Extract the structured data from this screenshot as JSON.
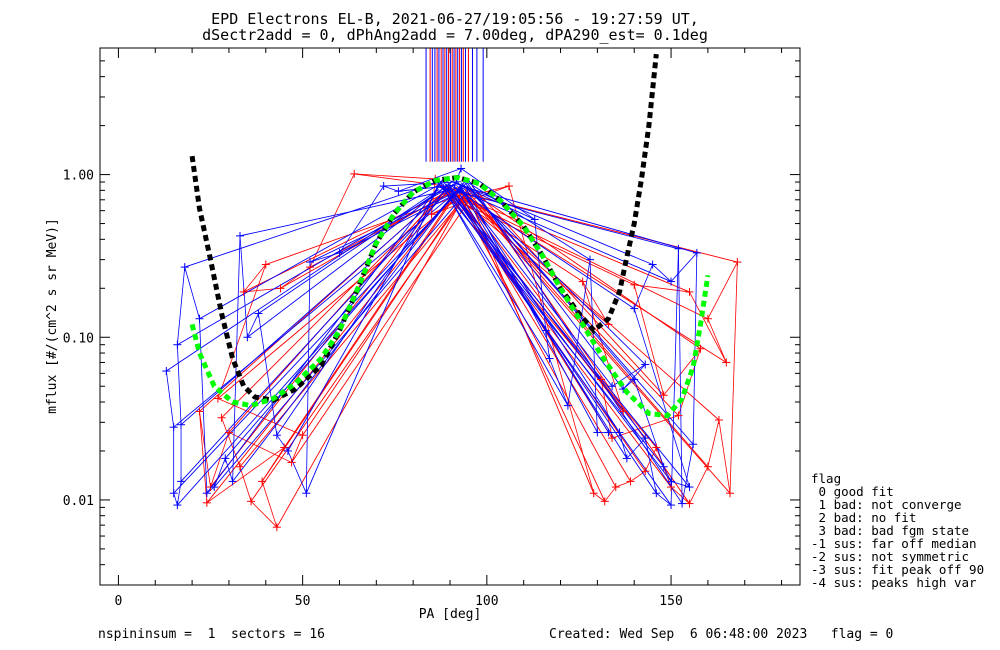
{
  "chart_data": {
    "type": "line",
    "title": "EPD Electrons EL-B, 2021-06-27/19:05:56 - 19:27:59 UT,",
    "subtitle": "dSectr2add = 0, dPhAng2add = 7.00deg, dPA290_est=   0.1deg",
    "xlabel": "PA [deg]",
    "ylabel": "mflux [#/(cm^2 s sr MeV)]",
    "xlim": [
      -5,
      185
    ],
    "ylim": [
      0.003,
      6.0
    ],
    "yscale": "log",
    "x_ticks": [
      0,
      50,
      100,
      150
    ],
    "y_ticks": [
      0.01,
      0.1,
      1.0
    ],
    "y_tick_labels": [
      "0.01",
      "0.10",
      "1.00"
    ],
    "colors": {
      "red": "#ff0000",
      "blue": "#0000ff",
      "black": "#000000",
      "green": "#00ff00"
    },
    "vertical_markers": {
      "ymin": 1.2,
      "ymax": 6.0,
      "x": [
        83.5,
        84.6,
        85.2,
        85.9,
        86.5,
        87.0,
        87.6,
        88.1,
        88.6,
        89.1,
        89.6,
        90.1,
        90.6,
        91.1,
        91.6,
        92.1,
        92.6,
        93.1,
        93.6,
        94.2,
        95.0,
        96.1,
        97.3,
        99.0
      ],
      "colors": [
        "blue",
        "red",
        "blue",
        "blue",
        "red",
        "blue",
        "red",
        "blue",
        "red",
        "blue",
        "red",
        "blue",
        "red",
        "blue",
        "red",
        "blue",
        "red",
        "blue",
        "red",
        "blue",
        "red",
        "blue",
        "blue",
        "blue"
      ]
    },
    "series": [
      {
        "color": "black",
        "style": "dashed",
        "points": [
          [
            20,
            1.3
          ],
          [
            22,
            0.62
          ],
          [
            25,
            0.3
          ],
          [
            28,
            0.14
          ],
          [
            31,
            0.074
          ],
          [
            34,
            0.05
          ],
          [
            37,
            0.043
          ],
          [
            42,
            0.041
          ],
          [
            48,
            0.048
          ],
          [
            55,
            0.067
          ],
          [
            60,
            0.11
          ],
          [
            65,
            0.2
          ],
          [
            70,
            0.38
          ],
          [
            75,
            0.58
          ],
          [
            80,
            0.78
          ],
          [
            86,
            0.92
          ],
          [
            92,
            0.96
          ],
          [
            98,
            0.88
          ],
          [
            104,
            0.68
          ],
          [
            110,
            0.48
          ],
          [
            115,
            0.32
          ],
          [
            120,
            0.2
          ],
          [
            125,
            0.14
          ],
          [
            129,
            0.11
          ],
          [
            133,
            0.13
          ],
          [
            136,
            0.19
          ],
          [
            138,
            0.31
          ],
          [
            140,
            0.5
          ],
          [
            142,
            0.95
          ],
          [
            144,
            2.0
          ],
          [
            146,
            5.5
          ]
        ]
      },
      {
        "color": "green",
        "style": "dashed",
        "points": [
          [
            20,
            0.12
          ],
          [
            22,
            0.08
          ],
          [
            26,
            0.05
          ],
          [
            31,
            0.04
          ],
          [
            36,
            0.038
          ],
          [
            42,
            0.042
          ],
          [
            48,
            0.052
          ],
          [
            55,
            0.074
          ],
          [
            60,
            0.11
          ],
          [
            65,
            0.2
          ],
          [
            70,
            0.38
          ],
          [
            75,
            0.58
          ],
          [
            80,
            0.78
          ],
          [
            86,
            0.92
          ],
          [
            92,
            0.96
          ],
          [
            98,
            0.88
          ],
          [
            104,
            0.68
          ],
          [
            110,
            0.48
          ],
          [
            115,
            0.32
          ],
          [
            120,
            0.2
          ],
          [
            126,
            0.12
          ],
          [
            132,
            0.072
          ],
          [
            138,
            0.046
          ],
          [
            144,
            0.034
          ],
          [
            149,
            0.033
          ],
          [
            153,
            0.042
          ],
          [
            156,
            0.066
          ],
          [
            158,
            0.12
          ],
          [
            160,
            0.24
          ]
        ]
      }
    ],
    "scatter": {
      "red": {
        "center": 92,
        "peak": 0.82,
        "points": [
          [
            28,
            0.032
          ],
          [
            33,
            0.016
          ],
          [
            36,
            0.0098
          ],
          [
            43,
            0.0068
          ],
          [
            39,
            0.013
          ],
          [
            45,
            0.021
          ],
          [
            24,
            0.0096
          ],
          [
            22,
            0.035
          ],
          [
            25,
            0.012
          ],
          [
            30,
            0.026
          ],
          [
            47,
            0.017
          ],
          [
            50,
            0.025
          ],
          [
            27,
            0.042
          ],
          [
            40,
            0.28
          ],
          [
            34,
            0.19
          ],
          [
            44,
            0.2
          ],
          [
            52,
            0.27
          ],
          [
            64,
            1.01
          ],
          [
            86,
            0.94
          ],
          [
            85,
            0.57
          ],
          [
            106,
            0.85
          ],
          [
            129,
            0.011
          ],
          [
            132,
            0.0098
          ],
          [
            135,
            0.012
          ],
          [
            139,
            0.013
          ],
          [
            143,
            0.015
          ],
          [
            146,
            0.021
          ],
          [
            150,
            0.012
          ],
          [
            155,
            0.0095
          ],
          [
            160,
            0.016
          ],
          [
            163,
            0.031
          ],
          [
            166,
            0.011
          ],
          [
            168,
            0.29
          ],
          [
            160,
            0.13
          ],
          [
            165,
            0.07
          ],
          [
            155,
            0.19
          ],
          [
            140,
            0.21
          ],
          [
            148,
            0.044
          ],
          [
            158,
            0.085
          ],
          [
            152,
            0.033
          ],
          [
            134,
            0.024
          ],
          [
            131,
            0.055
          ],
          [
            137,
            0.035
          ],
          [
            126,
            0.22
          ],
          [
            133,
            0.12
          ]
        ]
      },
      "blue": {
        "center": 91,
        "peak": 0.9,
        "points": [
          [
            13,
            0.062
          ],
          [
            15,
            0.028
          ],
          [
            15,
            0.011
          ],
          [
            16,
            0.0093
          ],
          [
            17,
            0.013
          ],
          [
            17,
            0.029
          ],
          [
            16,
            0.09
          ],
          [
            18,
            0.27
          ],
          [
            22,
            0.13
          ],
          [
            24,
            0.011
          ],
          [
            26,
            0.012
          ],
          [
            29,
            0.018
          ],
          [
            31,
            0.013
          ],
          [
            33,
            0.42
          ],
          [
            35,
            0.1
          ],
          [
            38,
            0.14
          ],
          [
            43,
            0.025
          ],
          [
            46,
            0.02
          ],
          [
            51,
            0.011
          ],
          [
            52,
            0.29
          ],
          [
            60,
            0.33
          ],
          [
            72,
            0.85
          ],
          [
            76,
            0.79
          ],
          [
            93,
            1.09
          ],
          [
            113,
            0.53
          ],
          [
            116,
            0.11
          ],
          [
            117,
            0.074
          ],
          [
            122,
            0.038
          ],
          [
            128,
            0.3
          ],
          [
            130,
            0.026
          ],
          [
            133,
            0.026
          ],
          [
            136,
            0.026
          ],
          [
            138,
            0.018
          ],
          [
            143,
            0.024
          ],
          [
            146,
            0.011
          ],
          [
            150,
            0.0093
          ],
          [
            152,
            0.35
          ],
          [
            153,
            0.0095
          ],
          [
            156,
            0.022
          ],
          [
            157,
            0.33
          ],
          [
            150,
            0.22
          ],
          [
            145,
            0.28
          ],
          [
            140,
            0.15
          ],
          [
            155,
            0.012
          ],
          [
            150,
            0.013
          ],
          [
            148,
            0.016
          ],
          [
            140,
            0.055
          ],
          [
            137,
            0.048
          ],
          [
            143,
            0.068
          ],
          [
            134,
            0.05
          ]
        ]
      }
    }
  },
  "legend": {
    "title": "flag",
    "items": [
      " 0 good fit",
      " 1 bad: not converge",
      " 2 bad: no fit",
      " 3 bad: bad fgm state",
      "-1 sus: far off median",
      "-2 sus: not symmetric",
      "-3 sus: fit peak off 90",
      "-4 sus: peaks high var"
    ]
  },
  "footer": {
    "left": "nspininsum =  1  sectors = 16",
    "right": "Created: Wed Sep  6 06:48:00 2023   flag = 0"
  }
}
